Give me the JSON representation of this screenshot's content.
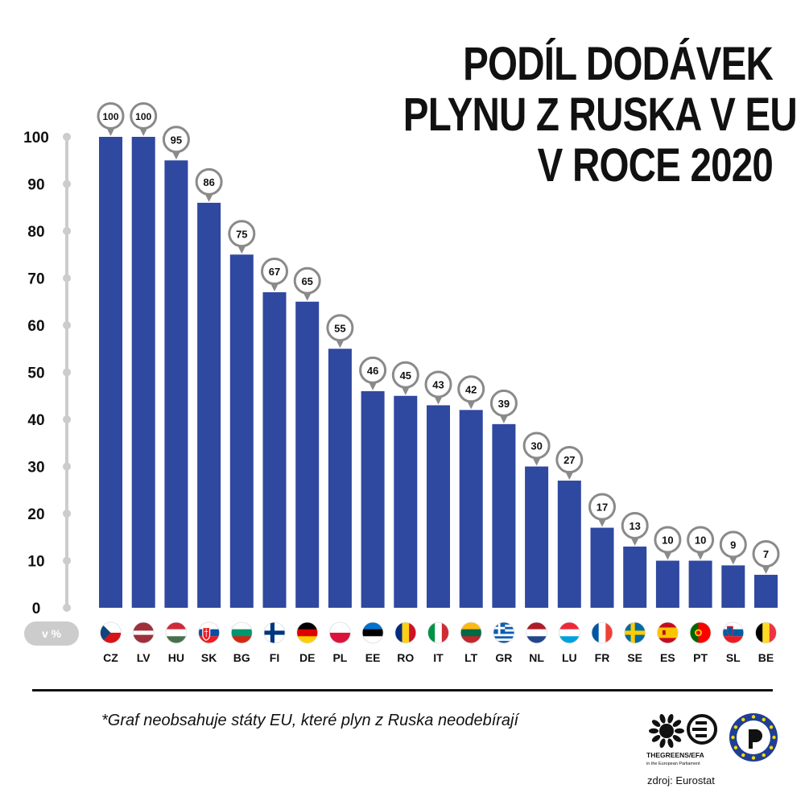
{
  "title_lines": [
    "PODÍL DODÁVEK",
    "PLYNU Z RUSKA V EU",
    "V ROCE 2020"
  ],
  "unit_badge": "v %",
  "footnote": "*Graf neobsahuje státy EU, které plyn z Ruska neodebírají",
  "source": "zdroj: Eurostat",
  "logos": {
    "greens": {
      "line1": "THEGREENS/EFA",
      "line2": "in the European Parliament"
    },
    "pirates": {
      "name": "pirate-party-logo"
    }
  },
  "colors": {
    "bar": "#2f48a0",
    "axis": "#cccccc",
    "text": "#111111"
  },
  "chart_data": {
    "type": "bar",
    "title": "PODÍL DODÁVEK PLYNU Z RUSKA V EU V ROCE 2020",
    "ylabel": "v %",
    "ylim": [
      0,
      100
    ],
    "yticks": [
      "0",
      "10",
      "20",
      "30",
      "40",
      "50",
      "60",
      "70",
      "80",
      "90",
      "100"
    ],
    "categories": [
      "CZ",
      "LV",
      "HU",
      "SK",
      "BG",
      "FI",
      "DE",
      "PL",
      "EE",
      "RO",
      "IT",
      "LT",
      "GR",
      "NL",
      "LU",
      "FR",
      "SE",
      "ES",
      "PT",
      "SL",
      "BE"
    ],
    "values": [
      100,
      100,
      95,
      86,
      75,
      67,
      65,
      55,
      46,
      45,
      43,
      42,
      39,
      30,
      27,
      17,
      13,
      10,
      10,
      9,
      7
    ],
    "value_labels": [
      "100",
      "100",
      "95",
      "86",
      "75",
      "67",
      "65",
      "55",
      "46",
      "45",
      "43",
      "42",
      "39",
      "30",
      "27",
      "17",
      "13",
      "10",
      "10",
      "9",
      "7"
    ],
    "flags": [
      "czech-flag-icon",
      "latvia-flag-icon",
      "hungary-flag-icon",
      "slovakia-flag-icon",
      "bulgaria-flag-icon",
      "finland-flag-icon",
      "germany-flag-icon",
      "poland-flag-icon",
      "estonia-flag-icon",
      "romania-flag-icon",
      "italy-flag-icon",
      "lithuania-flag-icon",
      "greece-flag-icon",
      "netherlands-flag-icon",
      "luxembourg-flag-icon",
      "france-flag-icon",
      "sweden-flag-icon",
      "spain-flag-icon",
      "portugal-flag-icon",
      "slovenia-flag-icon",
      "belgium-flag-icon"
    ]
  }
}
